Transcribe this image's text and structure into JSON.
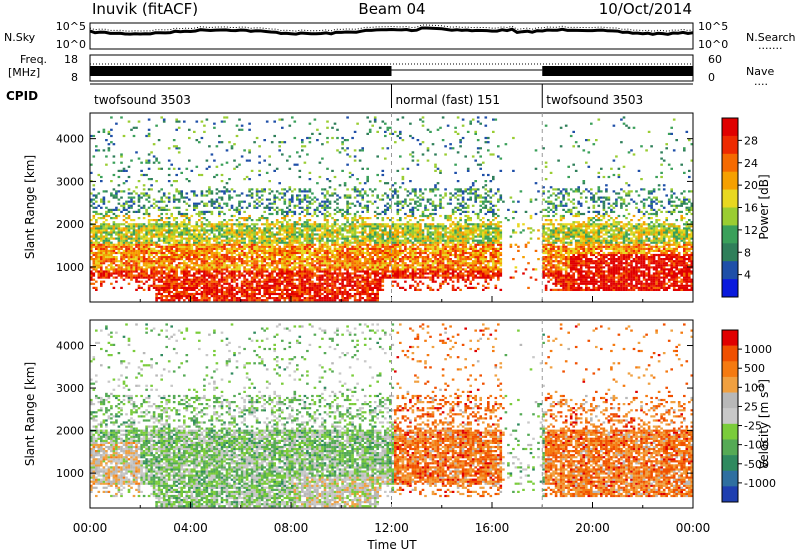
{
  "header": {
    "title": "Inuvik (fitACF)",
    "beam": "Beam 04",
    "date": "10/Oct/2014"
  },
  "top_panels": {
    "nsky": {
      "label": "N.Sky",
      "ticks": [
        "10^5",
        "10^0"
      ],
      "right_ticks": [
        "10^5",
        "10^0"
      ],
      "right_label": "N.Search",
      "right_dots": "......."
    },
    "freq": {
      "label_line1": "Freq.",
      "label_line2": "[MHz]",
      "ticks": [
        "18",
        "8"
      ],
      "right_ticks": [
        "60",
        "0"
      ],
      "right_label": "Nave",
      "right_dots": "...."
    },
    "cpid": {
      "label": "CPID",
      "segments": [
        {
          "name": "twofsound 3503",
          "start_h": 0,
          "end_h": 12
        },
        {
          "name": "normal (fast) 151",
          "start_h": 12,
          "end_h": 18
        },
        {
          "name": "twofsound 3503",
          "start_h": 18,
          "end_h": 24
        }
      ]
    }
  },
  "chart_data": [
    {
      "type": "heatmap",
      "name": "power",
      "ylabel": "Slant Range [km]",
      "yticks": [
        1000,
        2000,
        3000,
        4000
      ],
      "ylim": [
        180,
        4600
      ],
      "xlim": [
        0,
        24
      ],
      "colorbar_label": "Power [dB]",
      "colorbar_ticks": [
        "28",
        "24",
        "20",
        "16",
        "12",
        "8",
        "4"
      ],
      "colors": [
        "#0a1adc",
        "#1f4fa8",
        "#2f7f5a",
        "#3aa05a",
        "#9acd32",
        "#e8d820",
        "#f5a000",
        "#f56a00",
        "#ee2a00",
        "#e00000"
      ]
    },
    {
      "type": "heatmap",
      "name": "velocity",
      "ylabel": "Slant Range [km]",
      "yticks": [
        1000,
        2000,
        3000,
        4000
      ],
      "ylim": [
        180,
        4600
      ],
      "xlim": [
        0,
        24
      ],
      "xlabel": "Time UT",
      "xticks": [
        "00:00",
        "04:00",
        "08:00",
        "12:00",
        "16:00",
        "20:00",
        "00:00"
      ],
      "colorbar_label": "Velocity [m s",
      "colorbar_label_sup": "-1",
      "colorbar_label_end": "]",
      "colorbar_ticks": [
        "1000",
        "500",
        "100",
        "25",
        "-25",
        "-100",
        "-500",
        "-1000"
      ],
      "colors": [
        "#1f3fb0",
        "#2f6fa0",
        "#2f8a5f",
        "#55aa55",
        "#7acc3a",
        "#c8c8c8",
        "#b8b8b8",
        "#f0a040",
        "#f57a10",
        "#f05000",
        "#e00000"
      ]
    }
  ]
}
